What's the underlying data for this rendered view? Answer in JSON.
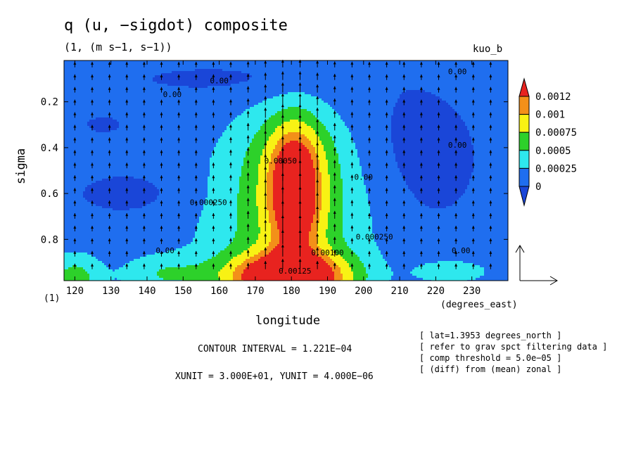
{
  "header": {
    "title": "q (u, −sigdot) composite",
    "subtitle": "(1, (m s−1, s−1))",
    "run_name": "kuo_b"
  },
  "axes": {
    "ylabel": "sigma",
    "xlabel": "longitude",
    "x_units": "(degrees_east)",
    "axis_one": "(1)"
  },
  "footer": {
    "contour_interval": "CONTOUR INTERVAL = 1.221E−04",
    "xy_unit": "XUNIT = 3.000E+01, YUNIT = 4.000E−06",
    "notes": [
      "[ lat=1.3953 degrees_north ]",
      "[ refer to grav spct filtering data ]",
      "[ comp threshold = 5.0e−05 ]",
      "[ (diff) from (mean) zonal ]"
    ]
  },
  "chart_data": {
    "type": "heatmap",
    "title": "q (u, −sigdot) composite",
    "xlabel": "longitude",
    "ylabel": "sigma",
    "xlim": [
      117,
      240
    ],
    "ylim": [
      0.02,
      0.98
    ],
    "y_inverted": true,
    "x_ticks": [
      120,
      130,
      140,
      150,
      160,
      170,
      180,
      190,
      200,
      210,
      220,
      230
    ],
    "y_ticks": [
      0.2,
      0.4,
      0.6,
      0.8
    ],
    "colorbar": {
      "levels": [
        "0.0012",
        "0.001",
        "0.00075",
        "0.0005",
        "0.00025",
        "0"
      ],
      "colors": [
        "#e8231f",
        "#f39019",
        "#f8f214",
        "#2dd12a",
        "#2ee8ee",
        "#1f6eef",
        "#1a46d8"
      ]
    },
    "contour_labels": [
      {
        "text": "0.00",
        "lon": 160,
        "sigma": 0.12
      },
      {
        "text": "0.00",
        "lon": 147,
        "sigma": 0.18
      },
      {
        "text": "0.00",
        "lon": 226,
        "sigma": 0.08
      },
      {
        "text": "0.00",
        "lon": 226,
        "sigma": 0.4
      },
      {
        "text": "0.00",
        "lon": 200,
        "sigma": 0.54
      },
      {
        "text": "0.00",
        "lon": 145,
        "sigma": 0.86
      },
      {
        "text": "0.00",
        "lon": 227,
        "sigma": 0.86
      },
      {
        "text": "0.000250",
        "lon": 157,
        "sigma": 0.65
      },
      {
        "text": "0.000250",
        "lon": 203,
        "sigma": 0.8
      },
      {
        "text": "0.00100",
        "lon": 190,
        "sigma": 0.87
      },
      {
        "text": "0.00125",
        "lon": 181,
        "sigma": 0.95
      },
      {
        "text": "0.00050",
        "lon": 177,
        "sigma": 0.47
      }
    ],
    "vector": {
      "description": "arrows (u, -sigdot)",
      "reference_x_unit": 30.0,
      "reference_y_unit": 4e-06
    }
  }
}
